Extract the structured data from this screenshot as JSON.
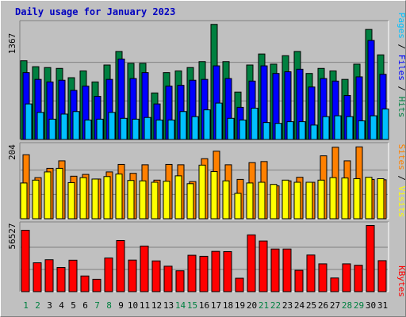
{
  "title": "Daily usage for January 2023",
  "colors": {
    "hits": "#008040",
    "files": "#0000ff",
    "pages": "#00c0ff",
    "visits": "#ffff00",
    "sites": "#ff8000",
    "kbytes": "#ff0000",
    "weekend_label": "#008040",
    "weekday_label": "#000000"
  },
  "chart_data": [
    {
      "type": "bar",
      "max_label": "1367",
      "ylim": [
        0,
        1367
      ],
      "grid": true,
      "categories": [
        "1",
        "2",
        "3",
        "4",
        "5",
        "6",
        "7",
        "8",
        "9",
        "10",
        "11",
        "12",
        "13",
        "14",
        "15",
        "16",
        "17",
        "18",
        "19",
        "20",
        "21",
        "22",
        "23",
        "24",
        "25",
        "26",
        "27",
        "28",
        "29",
        "30",
        "31"
      ],
      "series": [
        {
          "name": "Hits",
          "values": [
            930,
            860,
            850,
            840,
            730,
            810,
            680,
            880,
            1040,
            900,
            900,
            550,
            790,
            810,
            850,
            920,
            1360,
            920,
            560,
            880,
            1010,
            890,
            990,
            1040,
            780,
            840,
            810,
            710,
            890,
            1300,
            1000
          ]
        },
        {
          "name": "Files",
          "values": [
            790,
            710,
            680,
            700,
            580,
            630,
            510,
            710,
            950,
            720,
            790,
            420,
            630,
            640,
            700,
            710,
            870,
            720,
            380,
            690,
            870,
            780,
            800,
            830,
            620,
            720,
            690,
            520,
            740,
            1170,
            770
          ]
        },
        {
          "name": "Pages",
          "values": [
            420,
            320,
            240,
            300,
            330,
            230,
            240,
            320,
            250,
            240,
            260,
            230,
            230,
            330,
            270,
            350,
            430,
            250,
            230,
            370,
            200,
            190,
            210,
            210,
            170,
            270,
            280,
            270,
            220,
            280,
            360
          ]
        }
      ],
      "legend": [
        "Pages",
        "Files",
        "Hits"
      ]
    },
    {
      "type": "bar",
      "max_label": "204",
      "ylim": [
        0,
        204
      ],
      "grid": true,
      "categories": [
        "1",
        "2",
        "3",
        "4",
        "5",
        "6",
        "7",
        "8",
        "9",
        "10",
        "11",
        "12",
        "13",
        "14",
        "15",
        "16",
        "17",
        "18",
        "19",
        "20",
        "21",
        "22",
        "23",
        "24",
        "25",
        "26",
        "27",
        "28",
        "29",
        "30",
        "31"
      ],
      "series": [
        {
          "name": "Sites",
          "values": [
            179,
            115,
            141,
            162,
            119,
            124,
            111,
            131,
            152,
            127,
            151,
            108,
            152,
            151,
            104,
            168,
            189,
            151,
            110,
            157,
            160,
            92,
            106,
            116,
            102,
            176,
            200,
            162,
            201,
            110,
            109
          ]
        },
        {
          "name": "Visits",
          "values": [
            100,
            108,
            131,
            141,
            101,
            115,
            111,
            118,
            125,
            107,
            106,
            102,
            105,
            120,
            98,
            150,
            132,
            106,
            71,
            100,
            102,
            96,
            108,
            102,
            102,
            108,
            115,
            114,
            112,
            116,
            112
          ]
        }
      ],
      "legend": [
        "Sites",
        "Visits"
      ]
    },
    {
      "type": "bar",
      "max_label": "56527",
      "ylim": [
        0,
        56527
      ],
      "grid": true,
      "categories": [
        "1",
        "2",
        "3",
        "4",
        "5",
        "6",
        "7",
        "8",
        "9",
        "10",
        "11",
        "12",
        "13",
        "14",
        "15",
        "16",
        "17",
        "18",
        "19",
        "20",
        "21",
        "22",
        "23",
        "24",
        "25",
        "26",
        "27",
        "28",
        "29",
        "30",
        "31"
      ],
      "series": [
        {
          "name": "KBytes",
          "values": [
            52100,
            24500,
            27100,
            20500,
            26700,
            13300,
            10500,
            28600,
            43400,
            26800,
            38700,
            26100,
            21600,
            17700,
            30900,
            30000,
            34200,
            34000,
            11400,
            48200,
            43000,
            36200,
            36200,
            18100,
            31100,
            23600,
            11600,
            23600,
            22400,
            56200,
            26300
          ]
        }
      ],
      "legend": [
        "KBytes"
      ]
    }
  ],
  "x_label_colors": [
    "#008040",
    "#008040",
    "#000000",
    "#000000",
    "#000000",
    "#000000",
    "#008040",
    "#008040",
    "#000000",
    "#000000",
    "#000000",
    "#000000",
    "#000000",
    "#008040",
    "#008040",
    "#000000",
    "#000000",
    "#000000",
    "#000000",
    "#000000",
    "#008040",
    "#008040",
    "#000000",
    "#000000",
    "#000000",
    "#000000",
    "#000000",
    "#008040",
    "#008040",
    "#000000",
    "#000000"
  ]
}
